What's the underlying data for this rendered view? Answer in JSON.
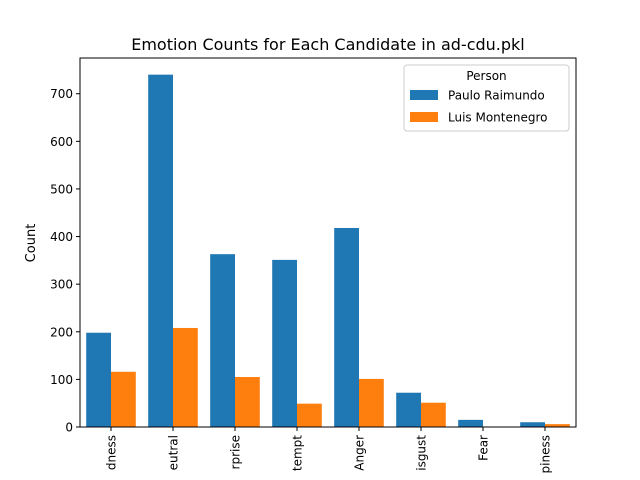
{
  "chart_data": {
    "type": "bar",
    "title": "Emotion Counts for Each Candidate in ad-cdu.pkl",
    "xlabel": "",
    "ylabel": "Count",
    "categories": [
      "dness",
      "eutral",
      "rprise",
      "tempt",
      "Anger",
      "isgust",
      "Fear",
      "piness"
    ],
    "series": [
      {
        "name": "Paulo Raimundo",
        "color": "#1f77b4",
        "values": [
          198,
          740,
          363,
          351,
          418,
          72,
          15,
          10
        ]
      },
      {
        "name": "Luis Montenegro",
        "color": "#ff7f0e",
        "values": [
          116,
          208,
          105,
          49,
          101,
          51,
          0,
          6
        ]
      }
    ],
    "ylim": [
      0,
      775
    ],
    "yticks": [
      0,
      100,
      200,
      300,
      400,
      500,
      600,
      700
    ],
    "legend": {
      "title": "Person",
      "placement": "top-right"
    },
    "grid": false
  }
}
